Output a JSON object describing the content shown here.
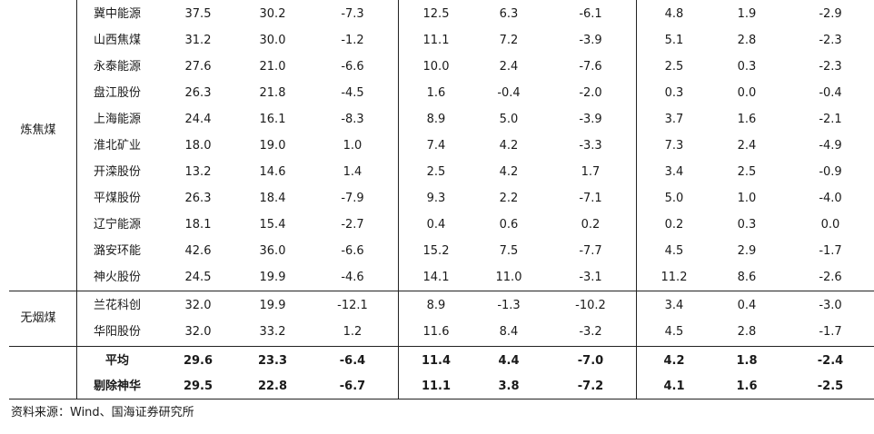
{
  "groups": {
    "coking": "炼焦煤",
    "anthracite": "无烟煤"
  },
  "rows": [
    {
      "name": "冀中能源",
      "v": [
        "37.5",
        "30.2",
        "-7.3",
        "12.5",
        "6.3",
        "-6.1",
        "4.8",
        "1.9",
        "-2.9"
      ]
    },
    {
      "name": "山西焦煤",
      "v": [
        "31.2",
        "30.0",
        "-1.2",
        "11.1",
        "7.2",
        "-3.9",
        "5.1",
        "2.8",
        "-2.3"
      ]
    },
    {
      "name": "永泰能源",
      "v": [
        "27.6",
        "21.0",
        "-6.6",
        "10.0",
        "2.4",
        "-7.6",
        "2.5",
        "0.3",
        "-2.3"
      ]
    },
    {
      "name": "盘江股份",
      "v": [
        "26.3",
        "21.8",
        "-4.5",
        "1.6",
        "-0.4",
        "-2.0",
        "0.3",
        "0.0",
        "-0.4"
      ]
    },
    {
      "name": "上海能源",
      "v": [
        "24.4",
        "16.1",
        "-8.3",
        "8.9",
        "5.0",
        "-3.9",
        "3.7",
        "1.6",
        "-2.1"
      ]
    },
    {
      "name": "淮北矿业",
      "v": [
        "18.0",
        "19.0",
        "1.0",
        "7.4",
        "4.2",
        "-3.3",
        "7.3",
        "2.4",
        "-4.9"
      ]
    },
    {
      "name": "开滦股份",
      "v": [
        "13.2",
        "14.6",
        "1.4",
        "2.5",
        "4.2",
        "1.7",
        "3.4",
        "2.5",
        "-0.9"
      ]
    },
    {
      "name": "平煤股份",
      "v": [
        "26.3",
        "18.4",
        "-7.9",
        "9.3",
        "2.2",
        "-7.1",
        "5.0",
        "1.0",
        "-4.0"
      ]
    },
    {
      "name": "辽宁能源",
      "v": [
        "18.1",
        "15.4",
        "-2.7",
        "0.4",
        "0.6",
        "0.2",
        "0.2",
        "0.3",
        "0.0"
      ]
    },
    {
      "name": "潞安环能",
      "v": [
        "42.6",
        "36.0",
        "-6.6",
        "15.2",
        "7.5",
        "-7.7",
        "4.5",
        "2.9",
        "-1.7"
      ]
    },
    {
      "name": "神火股份",
      "v": [
        "24.5",
        "19.9",
        "-4.6",
        "14.1",
        "11.0",
        "-3.1",
        "11.2",
        "8.6",
        "-2.6"
      ]
    },
    {
      "name": "兰花科创",
      "v": [
        "32.0",
        "19.9",
        "-12.1",
        "8.9",
        "-1.3",
        "-10.2",
        "3.4",
        "0.4",
        "-3.0"
      ]
    },
    {
      "name": "华阳股份",
      "v": [
        "32.0",
        "33.2",
        "1.2",
        "11.6",
        "8.4",
        "-3.2",
        "4.5",
        "2.8",
        "-1.7"
      ]
    }
  ],
  "summary": [
    {
      "name": "平均",
      "v": [
        "29.6",
        "23.3",
        "-6.4",
        "11.4",
        "4.4",
        "-7.0",
        "4.2",
        "1.8",
        "-2.4"
      ]
    },
    {
      "name": "剔除神华",
      "v": [
        "29.5",
        "22.8",
        "-6.7",
        "11.1",
        "3.8",
        "-7.2",
        "4.1",
        "1.6",
        "-2.5"
      ]
    }
  ],
  "source": "资料来源：Wind、国海证券研究所"
}
